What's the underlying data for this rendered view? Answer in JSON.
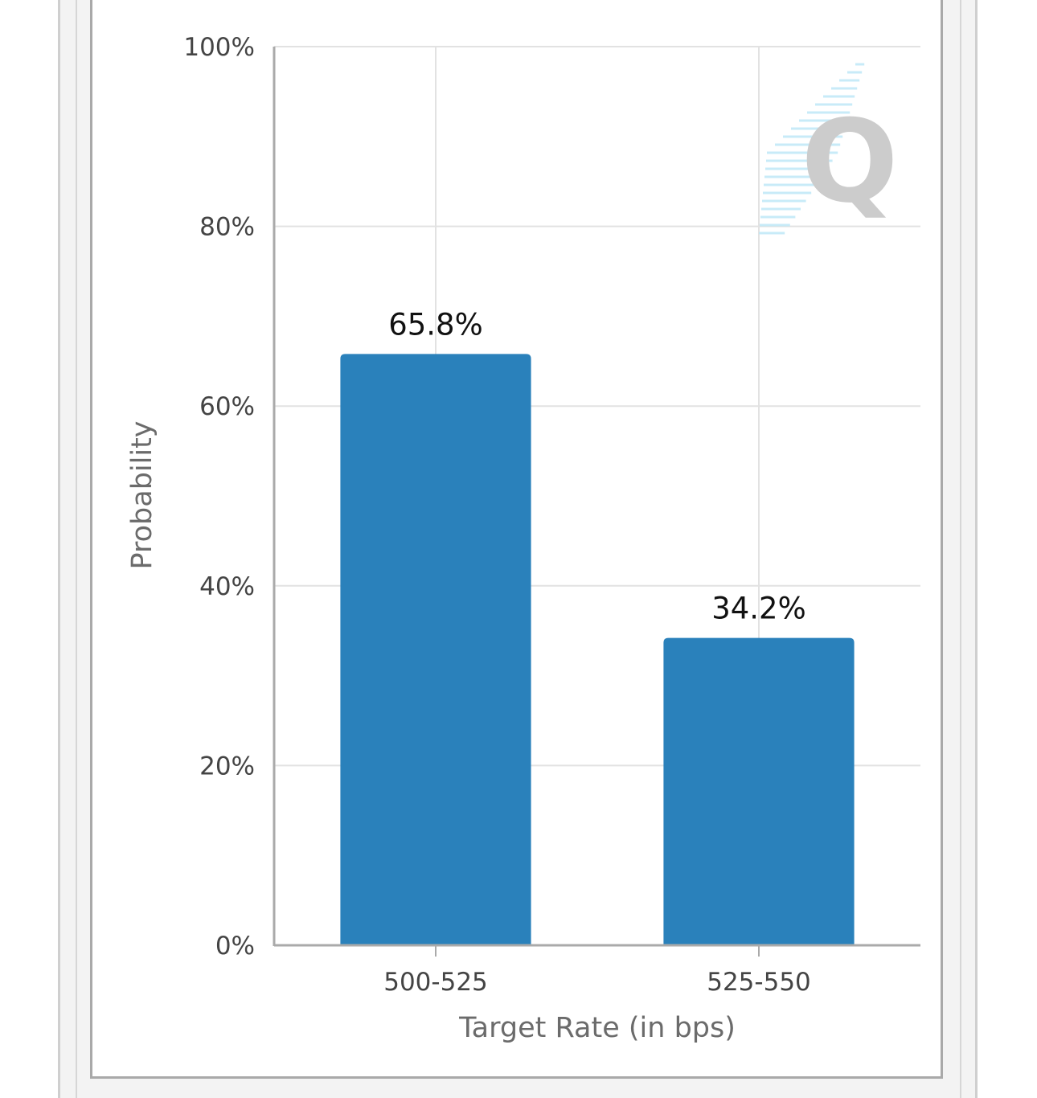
{
  "chart_data": {
    "type": "bar",
    "categories": [
      "500-525",
      "525-550"
    ],
    "values": [
      65.8,
      34.2
    ],
    "data_labels": [
      "65.8%",
      "34.2%"
    ],
    "title": "",
    "xlabel": "Target Rate (in bps)",
    "ylabel": "Probability",
    "ylim": [
      0,
      100
    ],
    "yticks": [
      0,
      20,
      40,
      60,
      80,
      100
    ],
    "ytick_labels": [
      "0%",
      "20%",
      "40%",
      "60%",
      "80%",
      "100%"
    ],
    "grid": true,
    "bar_color": "#2a81bb",
    "legend": "none"
  },
  "watermark": {
    "letter": "Q",
    "letter_color": "#cccccc",
    "streak_color": "#bfe8f7"
  }
}
